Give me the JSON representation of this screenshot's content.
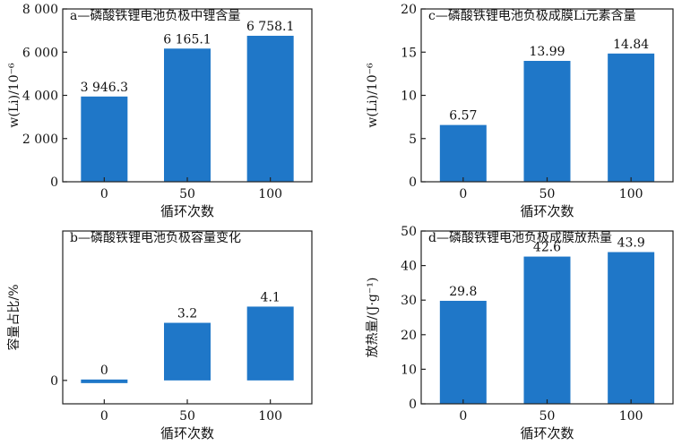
{
  "chart_data": [
    {
      "type": "bar",
      "title": "a—磷酸铁锂电池负极中锂含量",
      "categories": [
        "0",
        "50",
        "100"
      ],
      "values": [
        3946.3,
        6165.1,
        6758.1
      ],
      "value_labels": [
        "3 946.3",
        "6 165.1",
        "6 758.1"
      ],
      "xlabel": "循环次数",
      "ylabel": "w(Li)/10⁻⁶",
      "ylim": [
        0,
        8000
      ],
      "yticks": [
        0,
        2000,
        4000,
        6000,
        8000
      ],
      "ytick_labels": [
        "0",
        "2 000",
        "4 000",
        "6 000",
        "8 000"
      ],
      "bar_color": "#1f77c8",
      "grid": false
    },
    {
      "type": "bar",
      "title": "c—磷酸铁锂电池负极成膜Li元素含量",
      "categories": [
        "0",
        "50",
        "100"
      ],
      "values": [
        6.57,
        13.99,
        14.84
      ],
      "value_labels": [
        "6.57",
        "13.99",
        "14.84"
      ],
      "xlabel": "循环次数",
      "ylabel": "w(Li)/10⁻⁶",
      "ylim": [
        0,
        20
      ],
      "yticks": [
        0,
        5,
        10,
        15,
        20
      ],
      "ytick_labels": [
        "0",
        "5",
        "10",
        "15",
        "20"
      ],
      "bar_color": "#1f77c8",
      "grid": false
    },
    {
      "type": "bar",
      "title": "b—磷酸铁锂电池负极容量变化",
      "categories": [
        "0",
        "50",
        "100"
      ],
      "values": [
        0,
        3.2,
        4.1
      ],
      "value_labels": [
        "0",
        "3.2",
        "4.1"
      ],
      "xlabel": "循环次数",
      "ylabel": "容量占比/%",
      "ylim": [
        -1.3,
        8.3
      ],
      "yticks": [
        0
      ],
      "ytick_labels": [
        "0"
      ],
      "bar_color": "#1f77c8",
      "grid": false
    },
    {
      "type": "bar",
      "title": "d—磷酸铁锂电池负极成膜放热量",
      "categories": [
        "0",
        "50",
        "100"
      ],
      "values": [
        29.8,
        42.6,
        43.9
      ],
      "value_labels": [
        "29.8",
        "42.6",
        "43.9"
      ],
      "xlabel": "循环次数",
      "ylabel": "放热量/(J·g⁻¹)",
      "ylim": [
        0,
        50
      ],
      "yticks": [
        0,
        10,
        20,
        30,
        40,
        50
      ],
      "ytick_labels": [
        "0",
        "10",
        "20",
        "30",
        "40",
        "50"
      ],
      "bar_color": "#1f77c8",
      "grid": false
    }
  ]
}
